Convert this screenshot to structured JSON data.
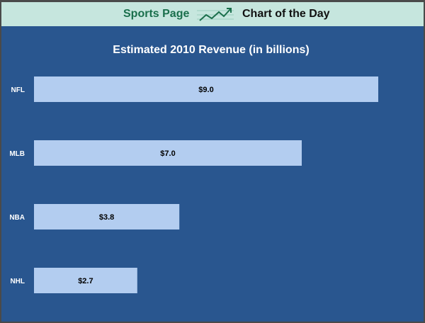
{
  "header": {
    "brand": "Sports Page",
    "subtitle": "Chart of the Day",
    "logo_icon": "trend-line-icon"
  },
  "colors": {
    "background": "#29568f",
    "header_bg": "#c6e6de",
    "brand": "#1a6f4c",
    "bar": "#b3cdf0"
  },
  "chart_data": {
    "type": "bar",
    "orientation": "horizontal",
    "title": "Estimated 2010 Revenue (in billions)",
    "categories": [
      "NFL",
      "MLB",
      "NBA",
      "NHL"
    ],
    "values": [
      9.0,
      7.0,
      3.8,
      2.7
    ],
    "labels": [
      "$9.0",
      "$7.0",
      "$3.8",
      "$2.7"
    ],
    "xlabel": "",
    "ylabel": "",
    "xlim": [
      0,
      11
    ],
    "grid": false,
    "legend": "none"
  }
}
